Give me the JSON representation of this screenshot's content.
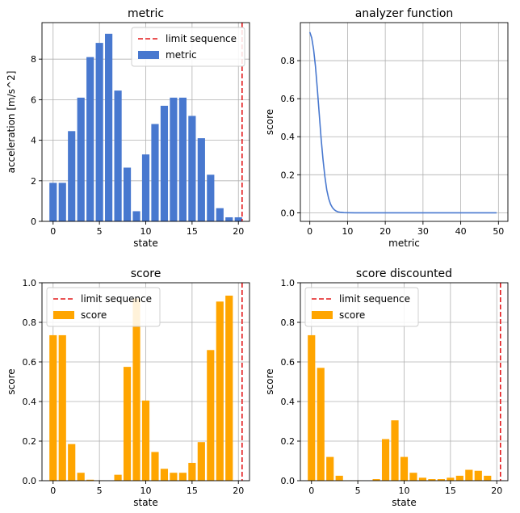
{
  "chart_data": [
    {
      "id": "metric",
      "type": "bar",
      "title": "metric",
      "xlabel": "state",
      "ylabel": "acceleration [m/s^2]",
      "xlim": [
        -1.2,
        21.2
      ],
      "ylim": [
        0,
        9.8
      ],
      "xticks": [
        0,
        5,
        10,
        15,
        20
      ],
      "yticks": [
        0,
        2,
        4,
        6,
        8
      ],
      "grid": true,
      "legend": "top-right",
      "series": [
        {
          "name": "metric",
          "kind": "bar",
          "color": "#4878cf",
          "x": [
            0,
            1,
            2,
            3,
            4,
            5,
            6,
            7,
            8,
            9,
            10,
            11,
            12,
            13,
            14,
            15,
            16,
            17,
            18,
            19,
            20
          ],
          "values": [
            1.9,
            1.9,
            4.45,
            6.1,
            8.1,
            8.8,
            9.25,
            6.45,
            2.65,
            0.5,
            3.3,
            4.8,
            5.7,
            6.1,
            6.1,
            5.2,
            4.1,
            2.3,
            0.65,
            0.2,
            0.2
          ]
        },
        {
          "name": "limit sequence",
          "kind": "vline",
          "x": 20.4,
          "color": "#e41a1c"
        }
      ]
    },
    {
      "id": "analyzer",
      "type": "line",
      "title": "analyzer function",
      "xlabel": "metric",
      "ylabel": "score",
      "xlim": [
        -2.5,
        52.5
      ],
      "ylim": [
        -0.045,
        1.0
      ],
      "xticks": [
        0,
        10,
        20,
        30,
        40,
        50
      ],
      "yticks": [
        0.0,
        0.2,
        0.4,
        0.6,
        0.8
      ],
      "grid": true,
      "legend": "none",
      "series": [
        {
          "kind": "line",
          "color": "#4878cf",
          "x": [
            0,
            0.5,
            1,
            1.5,
            2,
            2.5,
            3,
            3.5,
            4,
            4.5,
            5,
            5.5,
            6,
            6.5,
            7,
            7.5,
            8,
            9,
            10,
            12,
            15,
            20,
            30,
            40,
            49.5
          ],
          "values": [
            0.95,
            0.92,
            0.86,
            0.77,
            0.65,
            0.52,
            0.39,
            0.28,
            0.19,
            0.12,
            0.075,
            0.045,
            0.027,
            0.016,
            0.009,
            0.005,
            0.003,
            0.001,
            0.0005,
            0,
            0,
            0,
            0,
            0,
            0
          ]
        }
      ]
    },
    {
      "id": "score",
      "type": "bar",
      "title": "score",
      "xlabel": "state",
      "ylabel": "score",
      "xlim": [
        -1.2,
        21.2
      ],
      "ylim": [
        0,
        1.0
      ],
      "xticks": [
        0,
        5,
        10,
        15,
        20
      ],
      "yticks": [
        0.0,
        0.2,
        0.4,
        0.6,
        0.8,
        1.0
      ],
      "grid": true,
      "legend": "top-left",
      "series": [
        {
          "name": "score",
          "kind": "bar",
          "color": "#ffa500",
          "x": [
            0,
            1,
            2,
            3,
            4,
            5,
            6,
            7,
            8,
            9,
            10,
            11,
            12,
            13,
            14,
            15,
            16,
            17,
            18,
            19,
            20
          ],
          "values": [
            0.735,
            0.735,
            0.185,
            0.04,
            0.005,
            0.002,
            0.0,
            0.03,
            0.575,
            0.92,
            0.405,
            0.145,
            0.06,
            0.04,
            0.04,
            0.09,
            0.195,
            0.66,
            0.905,
            0.935,
            0.0
          ]
        },
        {
          "name": "limit sequence",
          "kind": "vline",
          "x": 20.4,
          "color": "#e41a1c"
        }
      ]
    },
    {
      "id": "score-discounted",
      "type": "bar",
      "title": "score discounted",
      "xlabel": "state",
      "ylabel": "score",
      "xlim": [
        -1.2,
        21.2
      ],
      "ylim": [
        0,
        1.0
      ],
      "xticks": [
        0,
        5,
        10,
        15,
        20
      ],
      "yticks": [
        0.0,
        0.2,
        0.4,
        0.6,
        0.8,
        1.0
      ],
      "grid": true,
      "legend": "top-left",
      "series": [
        {
          "name": "score",
          "kind": "bar",
          "color": "#ffa500",
          "x": [
            0,
            1,
            2,
            3,
            4,
            5,
            6,
            7,
            8,
            9,
            10,
            11,
            12,
            13,
            14,
            15,
            16,
            17,
            18,
            19,
            20
          ],
          "values": [
            0.735,
            0.57,
            0.12,
            0.025,
            0.002,
            0.001,
            0.0,
            0.008,
            0.21,
            0.305,
            0.12,
            0.04,
            0.015,
            0.008,
            0.008,
            0.015,
            0.025,
            0.055,
            0.05,
            0.025,
            0.0
          ]
        },
        {
          "name": "limit sequence",
          "kind": "vline",
          "x": 20.4,
          "color": "#e41a1c"
        }
      ]
    }
  ]
}
